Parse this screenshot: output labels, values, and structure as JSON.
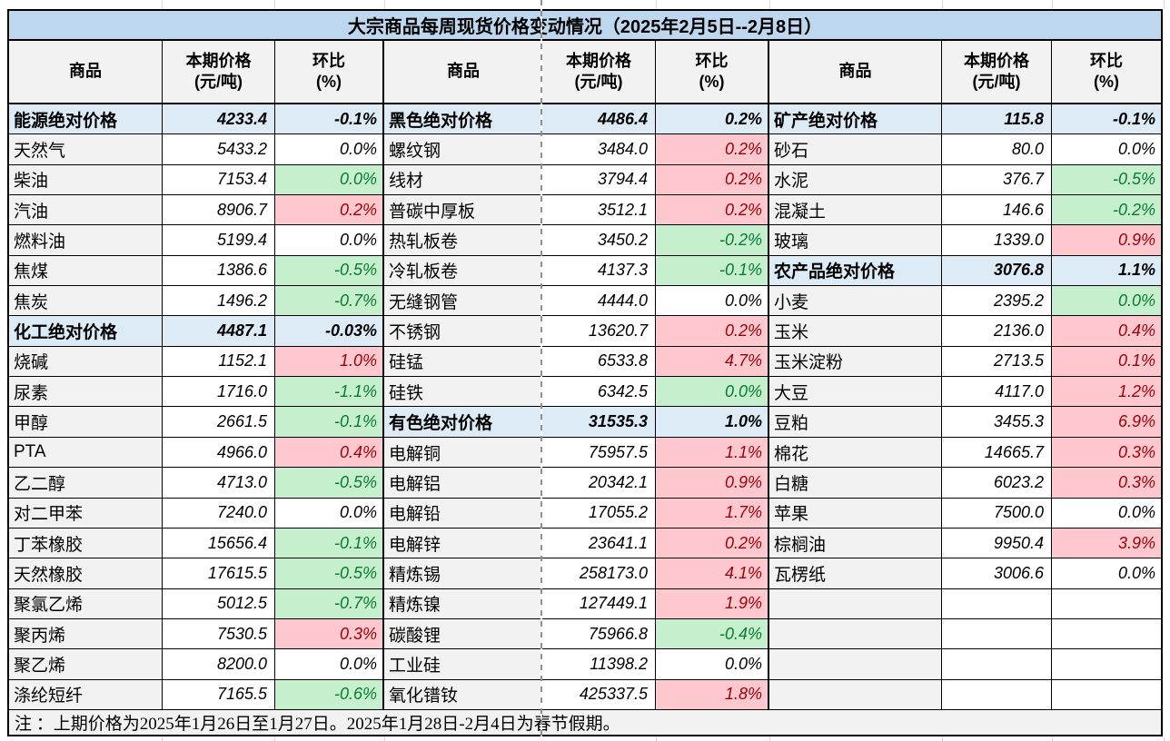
{
  "chart_data": {
    "type": "table",
    "title": "大宗商品每周现货价格变动情况（2025年2月5日--2月8日）",
    "note": "注 ：上期价格为2025年1月26日至1月27日。2025年1月28日-2月4日为春节假期。",
    "columns": [
      "商品",
      "本期价格",
      "(元/吨)",
      "环比",
      "(%)"
    ],
    "legend": {
      "section_row": "category absolute price (blue)",
      "up": "week-on-week increase (red)",
      "down": "week-on-week decrease (green)",
      "flat": "unchanged (white)"
    },
    "colors": {
      "title_bg": "#bdd7ee",
      "section_bg": "#ddebf7",
      "name_bg": "#f2f2f2",
      "up_bg": "#ffc7ce",
      "up_text": "#9c0006",
      "down_bg": "#c6efce",
      "down_text": "#077c30"
    },
    "groups": [
      {
        "rows": [
          [
            "能源绝对价格",
            "4233.4",
            "-0.1%",
            "section"
          ],
          [
            "天然气",
            "5433.2",
            "0.0%",
            "flat"
          ],
          [
            "柴油",
            "7153.4",
            "0.0%",
            "down"
          ],
          [
            "汽油",
            "8906.7",
            "0.2%",
            "up"
          ],
          [
            "燃料油",
            "5199.4",
            "0.0%",
            "flat"
          ],
          [
            "焦煤",
            "1386.6",
            "-0.5%",
            "down"
          ],
          [
            "焦炭",
            "1496.2",
            "-0.7%",
            "down"
          ],
          [
            "化工绝对价格",
            "4487.1",
            "-0.03%",
            "section"
          ],
          [
            "烧碱",
            "1152.1",
            "1.0%",
            "up"
          ],
          [
            "尿素",
            "1716.0",
            "-1.1%",
            "down"
          ],
          [
            "甲醇",
            "2661.5",
            "-0.1%",
            "down"
          ],
          [
            "PTA",
            "4966.0",
            "0.4%",
            "up"
          ],
          [
            "乙二醇",
            "4713.0",
            "-0.5%",
            "down"
          ],
          [
            "对二甲苯",
            "7240.0",
            "0.0%",
            "flat"
          ],
          [
            "丁苯橡胶",
            "15656.4",
            "-0.1%",
            "down"
          ],
          [
            "天然橡胶",
            "17615.5",
            "-0.5%",
            "down"
          ],
          [
            "聚氯乙烯",
            "5012.5",
            "-0.7%",
            "down"
          ],
          [
            "聚丙烯",
            "7530.5",
            "0.3%",
            "up"
          ],
          [
            "聚乙烯",
            "8200.0",
            "0.0%",
            "flat"
          ],
          [
            "涤纶短纤",
            "7165.5",
            "-0.6%",
            "down"
          ]
        ]
      },
      {
        "rows": [
          [
            "黑色绝对价格",
            "4486.4",
            "0.2%",
            "section"
          ],
          [
            "螺纹钢",
            "3484.0",
            "0.2%",
            "up"
          ],
          [
            "线材",
            "3794.4",
            "0.2%",
            "up"
          ],
          [
            "普碳中厚板",
            "3512.1",
            "0.2%",
            "up"
          ],
          [
            "热轧板卷",
            "3450.2",
            "-0.2%",
            "down"
          ],
          [
            "冷轧板卷",
            "4137.3",
            "-0.1%",
            "down"
          ],
          [
            "无缝钢管",
            "4444.0",
            "0.0%",
            "flat"
          ],
          [
            "不锈钢",
            "13620.7",
            "0.2%",
            "up"
          ],
          [
            "硅锰",
            "6533.8",
            "4.7%",
            "up"
          ],
          [
            "硅铁",
            "6342.5",
            "0.0%",
            "down"
          ],
          [
            "有色绝对价格",
            "31535.3",
            "1.0%",
            "section"
          ],
          [
            "电解铜",
            "75957.5",
            "1.1%",
            "up"
          ],
          [
            "电解铝",
            "20342.1",
            "0.9%",
            "up"
          ],
          [
            "电解铅",
            "17055.2",
            "1.7%",
            "up"
          ],
          [
            "电解锌",
            "23641.1",
            "0.2%",
            "up"
          ],
          [
            "精炼锡",
            "258173.0",
            "4.1%",
            "up"
          ],
          [
            "精炼镍",
            "127449.1",
            "1.9%",
            "up"
          ],
          [
            "碳酸锂",
            "75966.8",
            "-0.4%",
            "down"
          ],
          [
            "工业硅",
            "11398.2",
            "0.0%",
            "flat"
          ],
          [
            "氧化镨钕",
            "425337.5",
            "1.8%",
            "up"
          ]
        ]
      },
      {
        "rows": [
          [
            "矿产绝对价格",
            "115.8",
            "-0.1%",
            "section"
          ],
          [
            "砂石",
            "80.0",
            "0.0%",
            "flat"
          ],
          [
            "水泥",
            "376.7",
            "-0.5%",
            "down"
          ],
          [
            "混凝土",
            "146.6",
            "-0.2%",
            "down"
          ],
          [
            "玻璃",
            "1339.0",
            "0.9%",
            "up"
          ],
          [
            "农产品绝对价格",
            "3076.8",
            "1.1%",
            "section"
          ],
          [
            "小麦",
            "2395.2",
            "0.0%",
            "down"
          ],
          [
            "玉米",
            "2136.0",
            "0.4%",
            "up"
          ],
          [
            "玉米淀粉",
            "2713.5",
            "0.1%",
            "up"
          ],
          [
            "大豆",
            "4117.0",
            "1.2%",
            "up"
          ],
          [
            "豆粕",
            "3455.3",
            "6.9%",
            "up"
          ],
          [
            "棉花",
            "14665.7",
            "0.3%",
            "up"
          ],
          [
            "白糖",
            "6023.2",
            "0.3%",
            "up"
          ],
          [
            "苹果",
            "7500.0",
            "0.0%",
            "flat"
          ],
          [
            "棕榈油",
            "9950.4",
            "3.9%",
            "up"
          ],
          [
            "瓦楞纸",
            "3006.6",
            "0.0%",
            "flat"
          ],
          [
            "",
            "",
            "",
            "empty"
          ],
          [
            "",
            "",
            "",
            "empty"
          ],
          [
            "",
            "",
            "",
            "empty"
          ],
          [
            "",
            "",
            "",
            "empty"
          ]
        ]
      }
    ]
  }
}
